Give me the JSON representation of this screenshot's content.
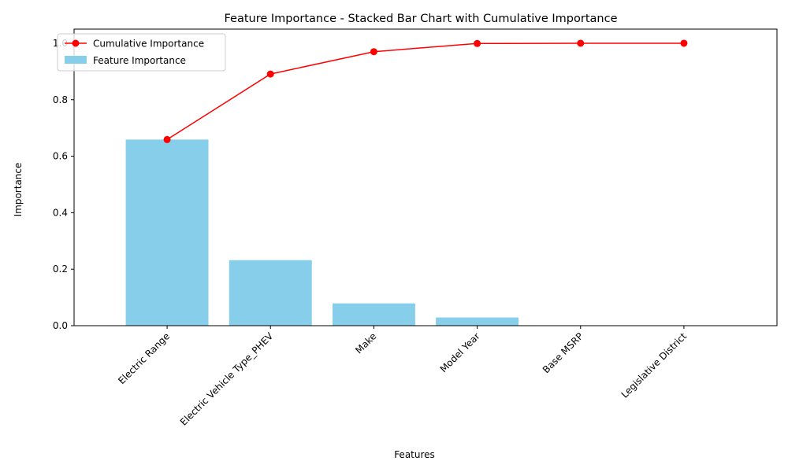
{
  "chart_data": {
    "type": "bar",
    "title": "Feature Importance - Stacked Bar Chart with Cumulative Importance",
    "xlabel": "Features",
    "ylabel": "Importance",
    "ylim": [
      0,
      1.05
    ],
    "yticks": [
      0.0,
      0.2,
      0.4,
      0.6,
      0.8,
      1.0
    ],
    "ytick_labels": [
      "0.0",
      "0.2",
      "0.4",
      "0.6",
      "0.8",
      "1.0"
    ],
    "categories": [
      "Electric Range",
      "Electric Vehicle Type_PHEV",
      "Make",
      "Model Year",
      "Base MSRP",
      "Legislative District"
    ],
    "series": [
      {
        "name": "Feature Importance",
        "kind": "bar",
        "color": "#87ceeb",
        "values": [
          0.659,
          0.232,
          0.079,
          0.029,
          0.001,
          0.0
        ]
      },
      {
        "name": "Cumulative Importance",
        "kind": "line",
        "color": "#ff0000",
        "marker": "circle",
        "values": [
          0.659,
          0.891,
          0.97,
          0.999,
          1.0,
          1.0
        ]
      }
    ],
    "legend": "top-left",
    "grid": false
  }
}
